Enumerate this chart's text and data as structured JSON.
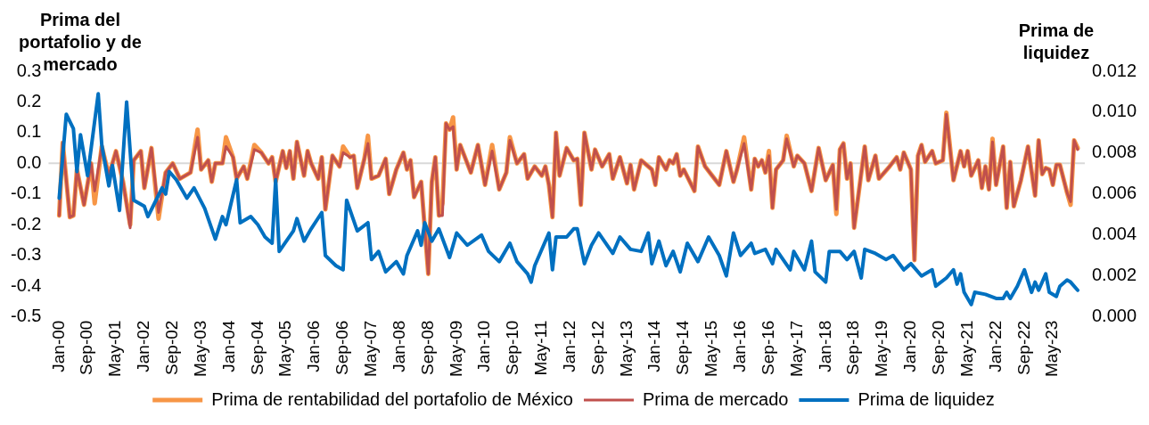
{
  "chart_data": {
    "type": "line",
    "ylabel": "Prima del portafolio y de mercado",
    "y2label": "Prima de liquidez",
    "x": [
      "2000-01",
      "2000-02",
      "2000-04",
      "2000-05",
      "2000-06",
      "2000-08",
      "2000-10",
      "2000-11",
      "2001-01",
      "2001-03",
      "2001-05",
      "2001-07",
      "2001-09",
      "2001-10",
      "2001-12",
      "2002-01",
      "2002-03",
      "2002-05",
      "2002-07",
      "2002-09",
      "2002-11",
      "2003-02",
      "2003-04",
      "2003-05",
      "2003-07",
      "2003-08",
      "2003-09",
      "2003-11",
      "2003-12",
      "2004-02",
      "2004-03",
      "2004-05",
      "2004-06",
      "2004-08",
      "2004-10",
      "2004-12",
      "2005-01",
      "2005-02",
      "2005-04",
      "2005-05",
      "2005-06",
      "2005-07",
      "2005-08",
      "2005-10",
      "2005-11",
      "2005-12",
      "2006-02",
      "2006-03",
      "2006-04",
      "2006-06",
      "2006-08",
      "2006-09",
      "2006-11",
      "2006-12",
      "2007-01",
      "2007-03",
      "2007-04",
      "2007-05",
      "2007-07",
      "2007-09",
      "2007-10",
      "2007-12",
      "2008-02",
      "2008-03",
      "2008-04",
      "2008-05",
      "2008-07",
      "2008-09",
      "2008-10",
      "2008-11",
      "2008-12",
      "2009-01",
      "2009-02",
      "2009-03",
      "2009-04",
      "2009-05",
      "2009-06",
      "2009-08",
      "2009-09",
      "2009-11",
      "2010-01",
      "2010-03",
      "2010-05",
      "2010-07",
      "2010-08",
      "2010-10",
      "2010-12",
      "2011-01",
      "2011-03",
      "2011-05",
      "2011-06",
      "2011-07",
      "2011-08",
      "2011-09",
      "2011-10",
      "2011-12",
      "2012-02",
      "2012-03",
      "2012-04",
      "2012-05",
      "2012-07",
      "2012-08",
      "2012-10",
      "2012-12",
      "2013-01",
      "2013-03",
      "2013-05",
      "2013-06",
      "2013-07",
      "2013-09",
      "2013-12",
      "2014-01",
      "2014-02",
      "2014-04",
      "2014-05",
      "2014-06",
      "2014-07",
      "2014-08",
      "2014-09",
      "2014-12",
      "2015-01",
      "2015-03",
      "2015-05",
      "2015-07",
      "2015-09",
      "2015-11",
      "2015-12",
      "2016-02",
      "2016-04",
      "2016-05",
      "2016-06",
      "2016-07",
      "2016-08",
      "2016-09",
      "2016-10",
      "2016-11",
      "2017-01",
      "2017-02",
      "2017-04",
      "2017-05",
      "2017-07",
      "2017-09",
      "2017-10",
      "2017-11",
      "2018-01",
      "2018-03",
      "2018-04",
      "2018-05",
      "2018-06",
      "2018-07",
      "2018-08",
      "2018-09",
      "2018-12",
      "2019-01",
      "2019-03",
      "2019-04",
      "2019-07",
      "2019-09",
      "2019-10",
      "2019-11",
      "2020-01",
      "2020-02",
      "2020-03",
      "2020-04",
      "2020-05",
      "2020-07",
      "2020-08",
      "2020-10",
      "2020-11",
      "2021-01",
      "2021-03",
      "2021-04",
      "2021-05",
      "2021-06",
      "2021-08",
      "2021-09",
      "2021-10",
      "2021-11",
      "2021-12",
      "2022-01",
      "2022-03",
      "2022-04",
      "2022-05",
      "2022-06",
      "2022-08",
      "2022-10",
      "2022-12",
      "2023-01",
      "2023-02",
      "2023-03",
      "2023-04",
      "2023-05",
      "2023-06",
      "2023-07",
      "2023-09",
      "2023-10",
      "2023-11",
      "2023-12"
    ],
    "series": [
      {
        "name": "Prima de rentabilidad del portafolio de México",
        "color": "#f79646",
        "values": [
          -0.17,
          0.067,
          -0.175,
          -0.17,
          -0.02,
          -0.135,
          0.0,
          -0.13,
          0.055,
          -0.04,
          0.04,
          -0.06,
          -0.2,
          0.01,
          0.04,
          -0.08,
          0.05,
          -0.18,
          -0.03,
          0.0,
          -0.05,
          -0.03,
          0.11,
          -0.02,
          0.01,
          -0.06,
          0.0,
          0.0,
          0.085,
          0.02,
          -0.05,
          -0.01,
          -0.05,
          0.06,
          0.035,
          0.0,
          0.02,
          -0.06,
          0.04,
          -0.015,
          0.04,
          -0.05,
          0.07,
          -0.04,
          0.04,
          0.0,
          -0.05,
          0.02,
          -0.15,
          0.025,
          -0.01,
          0.055,
          0.02,
          0.025,
          -0.08,
          0.015,
          0.09,
          -0.05,
          -0.04,
          0.015,
          -0.1,
          -0.02,
          0.035,
          -0.02,
          0.01,
          -0.11,
          -0.06,
          -0.36,
          -0.06,
          0.02,
          -0.17,
          -0.13,
          0.13,
          0.11,
          0.15,
          -0.02,
          0.06,
          0.0,
          -0.03,
          0.06,
          -0.07,
          0.06,
          -0.085,
          -0.03,
          0.085,
          0.0,
          0.03,
          -0.05,
          -0.01,
          -0.04,
          -0.01,
          -0.07,
          -0.175,
          0.1,
          -0.04,
          0.05,
          0.01,
          0.015,
          -0.135,
          0.1,
          -0.02,
          0.045,
          -0.01,
          0.03,
          -0.05,
          0.02,
          -0.065,
          -0.005,
          -0.085,
          0.01,
          -0.02,
          -0.07,
          0.02,
          -0.02,
          0.01,
          0.0,
          0.03,
          -0.04,
          -0.02,
          -0.09,
          0.055,
          -0.01,
          -0.04,
          -0.07,
          0.04,
          -0.06,
          -0.02,
          0.085,
          -0.085,
          0.015,
          -0.01,
          0.01,
          -0.03,
          0.04,
          -0.145,
          -0.02,
          0.01,
          0.09,
          -0.01,
          0.025,
          0.0,
          -0.09,
          -0.02,
          0.05,
          -0.055,
          -0.005,
          -0.165,
          0.045,
          0.065,
          -0.05,
          0.0,
          -0.21,
          0.055,
          -0.055,
          0.025,
          -0.05,
          -0.01,
          0.02,
          -0.02,
          0.035,
          -0.02,
          -0.315,
          0.025,
          0.06,
          0.005,
          0.04,
          0.0,
          0.01,
          0.165,
          -0.055,
          0.04,
          -0.01,
          0.04,
          -0.04,
          0.01,
          -0.08,
          -0.01,
          -0.085,
          0.08,
          -0.07,
          0.055,
          -0.145,
          0.005,
          -0.14,
          -0.055,
          0.055,
          -0.105,
          0.075,
          -0.035,
          -0.015,
          -0.02,
          -0.07,
          -0.005,
          -0.005,
          -0.095,
          -0.135,
          0.075,
          0.05
        ]
      },
      {
        "name": "Prima de mercado",
        "color": "#c0504d",
        "values": [
          -0.17,
          0.067,
          -0.175,
          -0.17,
          -0.02,
          -0.135,
          0.0,
          -0.09,
          0.055,
          -0.04,
          0.04,
          -0.06,
          -0.21,
          0.01,
          0.04,
          -0.08,
          0.05,
          -0.16,
          -0.03,
          0.0,
          -0.05,
          -0.03,
          0.085,
          -0.02,
          0.01,
          -0.06,
          0.0,
          0.0,
          0.055,
          0.02,
          -0.05,
          -0.01,
          -0.05,
          0.045,
          0.035,
          0.0,
          0.02,
          -0.06,
          0.04,
          -0.015,
          0.04,
          -0.05,
          0.07,
          -0.04,
          0.04,
          0.0,
          -0.05,
          0.02,
          -0.15,
          0.025,
          -0.01,
          0.035,
          0.02,
          0.025,
          -0.08,
          0.015,
          0.065,
          -0.05,
          -0.04,
          0.015,
          -0.1,
          -0.02,
          0.035,
          -0.02,
          0.01,
          -0.11,
          -0.06,
          -0.36,
          -0.06,
          0.02,
          -0.17,
          -0.17,
          0.13,
          0.11,
          0.12,
          -0.02,
          0.06,
          0.0,
          -0.03,
          0.06,
          -0.07,
          0.04,
          -0.085,
          -0.03,
          0.075,
          0.0,
          0.03,
          -0.05,
          -0.01,
          -0.04,
          -0.01,
          -0.07,
          -0.175,
          0.1,
          -0.04,
          0.05,
          0.01,
          0.015,
          -0.135,
          0.1,
          -0.02,
          0.045,
          -0.01,
          0.03,
          -0.05,
          0.02,
          -0.065,
          -0.005,
          -0.085,
          0.01,
          -0.02,
          -0.07,
          0.02,
          -0.02,
          0.01,
          0.0,
          0.03,
          -0.04,
          -0.02,
          -0.09,
          0.055,
          -0.01,
          -0.04,
          -0.07,
          0.04,
          -0.06,
          -0.02,
          0.065,
          -0.085,
          0.015,
          -0.01,
          0.01,
          -0.03,
          0.025,
          -0.145,
          -0.02,
          0.01,
          0.08,
          -0.01,
          0.025,
          0.0,
          -0.09,
          -0.02,
          0.05,
          -0.055,
          -0.005,
          -0.15,
          0.045,
          0.065,
          -0.05,
          0.0,
          -0.21,
          0.055,
          -0.055,
          0.025,
          -0.05,
          -0.01,
          0.02,
          -0.02,
          0.035,
          -0.02,
          -0.315,
          0.025,
          0.06,
          0.005,
          0.04,
          0.0,
          0.01,
          0.16,
          -0.055,
          0.04,
          -0.01,
          0.04,
          -0.04,
          0.01,
          -0.08,
          -0.01,
          -0.085,
          0.07,
          -0.07,
          0.055,
          -0.145,
          0.005,
          -0.14,
          -0.055,
          0.055,
          -0.105,
          0.075,
          -0.035,
          -0.015,
          -0.02,
          -0.07,
          -0.005,
          -0.005,
          -0.095,
          -0.125,
          0.075,
          0.045
        ]
      },
      {
        "name": "Prima de liquidez",
        "color": "#0070c0",
        "axis": "y2",
        "x": [
          "2000-01",
          "2000-03",
          "2000-05",
          "2000-06",
          "2000-07",
          "2000-09",
          "2000-12",
          "2001-01",
          "2001-03",
          "2001-04",
          "2001-06",
          "2001-08",
          "2001-10",
          "2002-01",
          "2002-02",
          "2002-04",
          "2002-06",
          "2002-07",
          "2002-08",
          "2002-10",
          "2003-01",
          "2003-03",
          "2003-06",
          "2003-09",
          "2003-11",
          "2003-12",
          "2004-03",
          "2004-04",
          "2004-07",
          "2004-09",
          "2004-11",
          "2005-01",
          "2005-02",
          "2005-03",
          "2005-07",
          "2005-08",
          "2005-10",
          "2005-12",
          "2006-03",
          "2006-04",
          "2006-07",
          "2006-09",
          "2006-10",
          "2007-01",
          "2007-04",
          "2007-05",
          "2007-07",
          "2007-09",
          "2007-12",
          "2008-02",
          "2008-03",
          "2008-06",
          "2008-07",
          "2008-08",
          "2008-10",
          "2008-12",
          "2009-03",
          "2009-05",
          "2009-08",
          "2009-12",
          "2010-02",
          "2010-05",
          "2010-08",
          "2010-10",
          "2011-01",
          "2011-02",
          "2011-03",
          "2011-07",
          "2011-08",
          "2011-09",
          "2011-12",
          "2012-02",
          "2012-03",
          "2012-05",
          "2012-07",
          "2012-09",
          "2013-01",
          "2013-03",
          "2013-06",
          "2013-09",
          "2013-11",
          "2013-12",
          "2014-02",
          "2014-04",
          "2014-06",
          "2014-08",
          "2014-10",
          "2015-01",
          "2015-04",
          "2015-07",
          "2015-09",
          "2015-11",
          "2016-01",
          "2016-04",
          "2016-05",
          "2016-08",
          "2016-10",
          "2016-11",
          "2017-03",
          "2017-04",
          "2017-07",
          "2017-09",
          "2017-10",
          "2018-01",
          "2018-02",
          "2018-05",
          "2018-07",
          "2018-09",
          "2018-11",
          "2018-12",
          "2019-03",
          "2019-06",
          "2019-08",
          "2019-11",
          "2020-01",
          "2020-04",
          "2020-07",
          "2020-08",
          "2020-11",
          "2021-01",
          "2021-02",
          "2021-03",
          "2021-04",
          "2021-06",
          "2021-07",
          "2021-10",
          "2022-01",
          "2022-03",
          "2022-04",
          "2022-05",
          "2022-07",
          "2022-09",
          "2022-11",
          "2022-12",
          "2023-01",
          "2023-03",
          "2023-04",
          "2023-06",
          "2023-07",
          "2023-09",
          "2023-10",
          "2023-12"
        ],
        "values": [
          0.0058,
          0.0099,
          0.0092,
          0.0071,
          0.0089,
          0.0069,
          0.0109,
          0.0084,
          0.0064,
          0.0074,
          0.0052,
          0.0105,
          0.0057,
          0.0054,
          0.0049,
          0.0056,
          0.0063,
          0.006,
          0.0071,
          0.0067,
          0.0058,
          0.0063,
          0.0053,
          0.0038,
          0.0049,
          0.0045,
          0.0067,
          0.0046,
          0.0049,
          0.0045,
          0.0039,
          0.0036,
          0.0067,
          0.0032,
          0.0042,
          0.0048,
          0.0037,
          0.0043,
          0.0051,
          0.003,
          0.0025,
          0.0023,
          0.0057,
          0.0042,
          0.0046,
          0.0028,
          0.0032,
          0.0022,
          0.0027,
          0.0021,
          0.003,
          0.0042,
          0.0035,
          0.0046,
          0.0037,
          0.0043,
          0.0029,
          0.0041,
          0.0035,
          0.004,
          0.0032,
          0.0027,
          0.0036,
          0.0027,
          0.0021,
          0.0017,
          0.0025,
          0.0041,
          0.0023,
          0.0039,
          0.0039,
          0.0043,
          0.0043,
          0.0026,
          0.0035,
          0.0041,
          0.0031,
          0.0039,
          0.0033,
          0.0032,
          0.0041,
          0.0026,
          0.0037,
          0.0025,
          0.0032,
          0.0022,
          0.0036,
          0.0027,
          0.0039,
          0.003,
          0.002,
          0.0041,
          0.003,
          0.0036,
          0.0031,
          0.0033,
          0.0026,
          0.0033,
          0.0023,
          0.0032,
          0.0023,
          0.0037,
          0.0022,
          0.0017,
          0.0032,
          0.0032,
          0.0028,
          0.0032,
          0.0019,
          0.0033,
          0.0031,
          0.0028,
          0.003,
          0.0023,
          0.0026,
          0.002,
          0.0023,
          0.0015,
          0.0019,
          0.0023,
          0.0016,
          0.0021,
          0.0012,
          0.0006,
          0.0012,
          0.0011,
          0.0009,
          0.0009,
          0.0012,
          0.0009,
          0.0015,
          0.0023,
          0.0012,
          0.0017,
          0.0013,
          0.0021,
          0.0012,
          0.001,
          0.0015,
          0.0018,
          0.0017,
          0.0013
        ]
      }
    ],
    "xlim": [
      "1999-10",
      "2024-02"
    ],
    "xticks": [
      {
        "value": "2000-01",
        "label": "Jan-00"
      },
      {
        "value": "2000-09",
        "label": "Sep-00"
      },
      {
        "value": "2001-05",
        "label": "May-01"
      },
      {
        "value": "2002-01",
        "label": "Jan-02"
      },
      {
        "value": "2002-09",
        "label": "Sep-02"
      },
      {
        "value": "2003-05",
        "label": "May-03"
      },
      {
        "value": "2004-01",
        "label": "Jan-04"
      },
      {
        "value": "2004-09",
        "label": "Sep-04"
      },
      {
        "value": "2005-05",
        "label": "May-05"
      },
      {
        "value": "2006-01",
        "label": "Jan-06"
      },
      {
        "value": "2006-09",
        "label": "Sep-06"
      },
      {
        "value": "2007-05",
        "label": "May-07"
      },
      {
        "value": "2008-01",
        "label": "Jan-08"
      },
      {
        "value": "2008-09",
        "label": "Sep-08"
      },
      {
        "value": "2009-05",
        "label": "May-09"
      },
      {
        "value": "2010-01",
        "label": "Jan-10"
      },
      {
        "value": "2010-09",
        "label": "Sep-10"
      },
      {
        "value": "2011-05",
        "label": "May-11"
      },
      {
        "value": "2012-01",
        "label": "Jan-12"
      },
      {
        "value": "2012-09",
        "label": "Sep-12"
      },
      {
        "value": "2013-05",
        "label": "May-13"
      },
      {
        "value": "2014-01",
        "label": "Jan-14"
      },
      {
        "value": "2014-09",
        "label": "Sep-14"
      },
      {
        "value": "2015-05",
        "label": "May-15"
      },
      {
        "value": "2016-01",
        "label": "Jan-16"
      },
      {
        "value": "2016-09",
        "label": "Sep-16"
      },
      {
        "value": "2017-05",
        "label": "May-17"
      },
      {
        "value": "2018-01",
        "label": "Jan-18"
      },
      {
        "value": "2018-09",
        "label": "Sep-18"
      },
      {
        "value": "2019-05",
        "label": "May-19"
      },
      {
        "value": "2020-01",
        "label": "Jan-20"
      },
      {
        "value": "2020-09",
        "label": "Sep-20"
      },
      {
        "value": "2021-05",
        "label": "May-21"
      },
      {
        "value": "2022-01",
        "label": "Jan-22"
      },
      {
        "value": "2022-09",
        "label": "Sep-22"
      },
      {
        "value": "2023-05",
        "label": "May-23"
      }
    ],
    "ylim": [
      -0.5,
      0.3
    ],
    "yticks": [
      -0.5,
      -0.4,
      -0.3,
      -0.2,
      -0.1,
      {
        "value": 0,
        "label": "0.0"
      },
      0.1,
      0.2,
      0.3
    ],
    "y2lim": [
      0,
      0.012
    ],
    "y2ticks": [
      {
        "value": 0,
        "label": "0.000"
      },
      0.002,
      0.004,
      0.006,
      0.008,
      {
        "value": 0.01,
        "label": "0.010"
      },
      0.012
    ],
    "ref_lines": [
      {
        "axis": "y",
        "value": 0,
        "color": "#d9d9d9"
      }
    ],
    "grid": false,
    "legend": "bottom",
    "marker": "none",
    "line_style": "solid"
  }
}
